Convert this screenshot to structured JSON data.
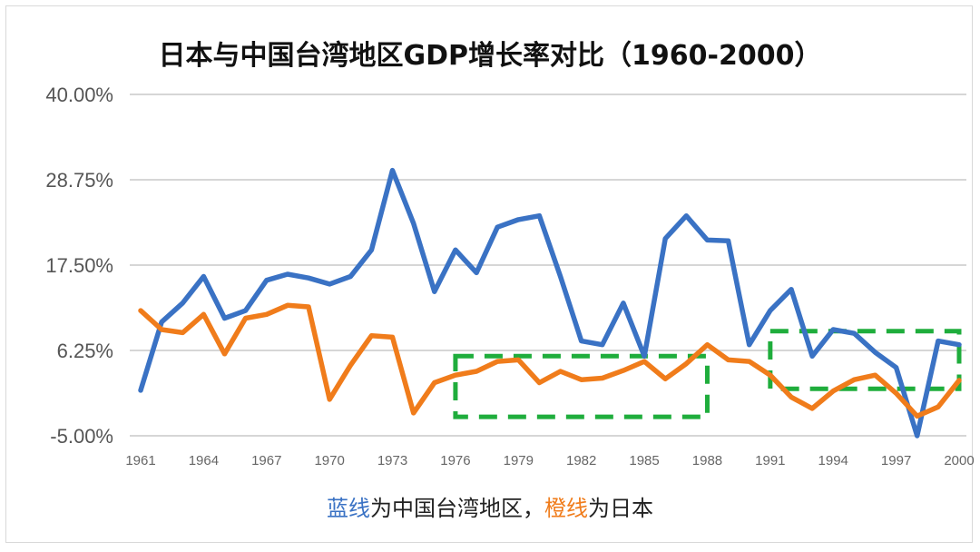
{
  "chart_data": {
    "type": "line",
    "title": "日本与中国台湾地区GDP增长率对比（1960-2000）",
    "ylim": [
      -5,
      40
    ],
    "y_ticks": [
      "40.00%",
      "28.75%",
      "17.50%",
      "6.25%",
      "-5.00%"
    ],
    "y_tick_values": [
      40,
      28.75,
      17.5,
      6.25,
      -5
    ],
    "x_tick_labels": [
      "1961",
      "1964",
      "1967",
      "1970",
      "1973",
      "1976",
      "1979",
      "1982",
      "1985",
      "1988",
      "1991",
      "1994",
      "1997",
      "2000"
    ],
    "x_tick_values": [
      1961,
      1964,
      1967,
      1970,
      1973,
      1976,
      1979,
      1982,
      1985,
      1988,
      1991,
      1994,
      1997,
      2000
    ],
    "xlim": [
      1961,
      2000
    ],
    "grid": true,
    "x": [
      1961,
      1962,
      1963,
      1964,
      1965,
      1966,
      1967,
      1968,
      1969,
      1970,
      1971,
      1972,
      1973,
      1974,
      1975,
      1976,
      1977,
      1978,
      1979,
      1980,
      1981,
      1982,
      1983,
      1984,
      1985,
      1986,
      1987,
      1988,
      1989,
      1990,
      1991,
      1992,
      1993,
      1994,
      1995,
      1996,
      1997,
      1998,
      1999,
      2000
    ],
    "series": [
      {
        "key": "taiwan",
        "color": "#3a72c4",
        "values": [
          1.0,
          10.0,
          12.5,
          16.0,
          10.5,
          11.5,
          15.5,
          16.3,
          15.8,
          15.0,
          16.0,
          19.5,
          30.0,
          23.0,
          14.0,
          19.5,
          16.5,
          22.5,
          23.5,
          24.0,
          16.0,
          7.5,
          7.0,
          12.5,
          5.5,
          21.0,
          24.0,
          20.8,
          20.7,
          7.0,
          11.5,
          14.3,
          5.5,
          9.0,
          8.5,
          6.0,
          4.0,
          -5.0,
          7.5,
          7.0
        ]
      },
      {
        "key": "japan",
        "color": "#f07c1b",
        "values": [
          11.5,
          9.0,
          8.6,
          11.0,
          5.8,
          10.5,
          11.0,
          12.2,
          12.0,
          -0.2,
          4.3,
          8.2,
          8.0,
          -2.0,
          2.0,
          3.0,
          3.5,
          4.8,
          5.0,
          2.0,
          3.5,
          2.4,
          2.6,
          3.6,
          4.8,
          2.5,
          4.5,
          7.0,
          5.0,
          4.8,
          3.0,
          0.1,
          -1.4,
          0.9,
          2.4,
          3.0,
          0.6,
          -2.4,
          -1.2,
          2.3
        ]
      }
    ],
    "annotations": [
      {
        "shape": "dashed-rect",
        "x_from": 1976,
        "x_to": 1988,
        "y_from": -2.5,
        "y_to": 5.5,
        "color": "#1fad3c"
      },
      {
        "shape": "dashed-rect",
        "x_from": 1991,
        "x_to": 2000,
        "y_from": 1.2,
        "y_to": 8.8,
        "color": "#1fad3c"
      }
    ]
  },
  "caption": {
    "blue_part": "蓝线",
    "mid_part": "为中国台湾地区，",
    "orange_part": "橙线",
    "end_part": "为日本",
    "blue_color": "#3a72c4",
    "orange_color": "#f07c1b"
  }
}
